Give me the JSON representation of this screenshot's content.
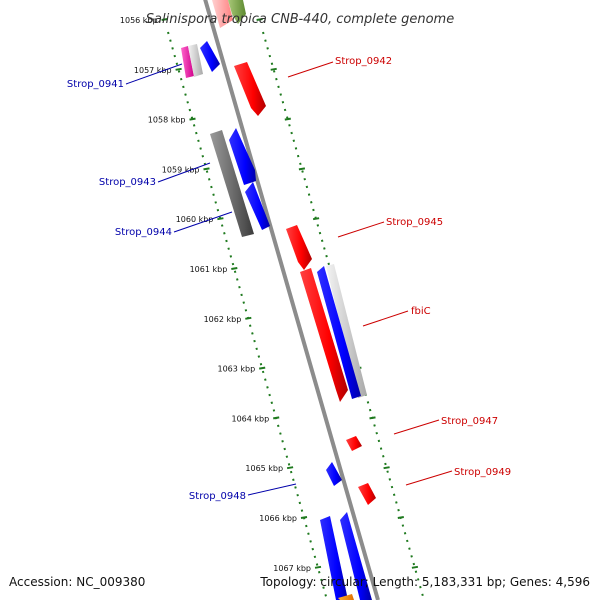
{
  "title": "Salinispora tropica CNB-440, complete genome",
  "accession": "Accession: NC_009380",
  "summary": "Topology: circular; Length: 5,183,331 bp; Genes: 4,596",
  "colors": {
    "forward_gene": "#ff0000",
    "reverse_gene": "#0000ff",
    "forward_label": "#cc0000",
    "reverse_label": "#0000aa",
    "backbone": "#8c8c8c",
    "ruler": "#1f7a1f",
    "rna_gene": "#ff1493",
    "other_gene": "#6b9e3a"
  },
  "ruler_labels": [
    "1056 kbp",
    "1057 kbp",
    "1058 kbp",
    "1059 kbp",
    "1060 kbp",
    "1061 kbp",
    "1062 kbp",
    "1063 kbp",
    "1064 kbp",
    "1065 kbp",
    "1066 kbp",
    "1067 kbp"
  ],
  "gene_labels": [
    {
      "text": "Strop_0941",
      "strand": "reverse"
    },
    {
      "text": "Strop_0942",
      "strand": "forward"
    },
    {
      "text": "Strop_0943",
      "strand": "reverse"
    },
    {
      "text": "Strop_0944",
      "strand": "reverse"
    },
    {
      "text": "Strop_0945",
      "strand": "forward"
    },
    {
      "text": "fbiC",
      "strand": "forward"
    },
    {
      "text": "Strop_0947",
      "strand": "forward"
    },
    {
      "text": "Strop_0948",
      "strand": "reverse"
    },
    {
      "text": "Strop_0949",
      "strand": "forward"
    }
  ]
}
